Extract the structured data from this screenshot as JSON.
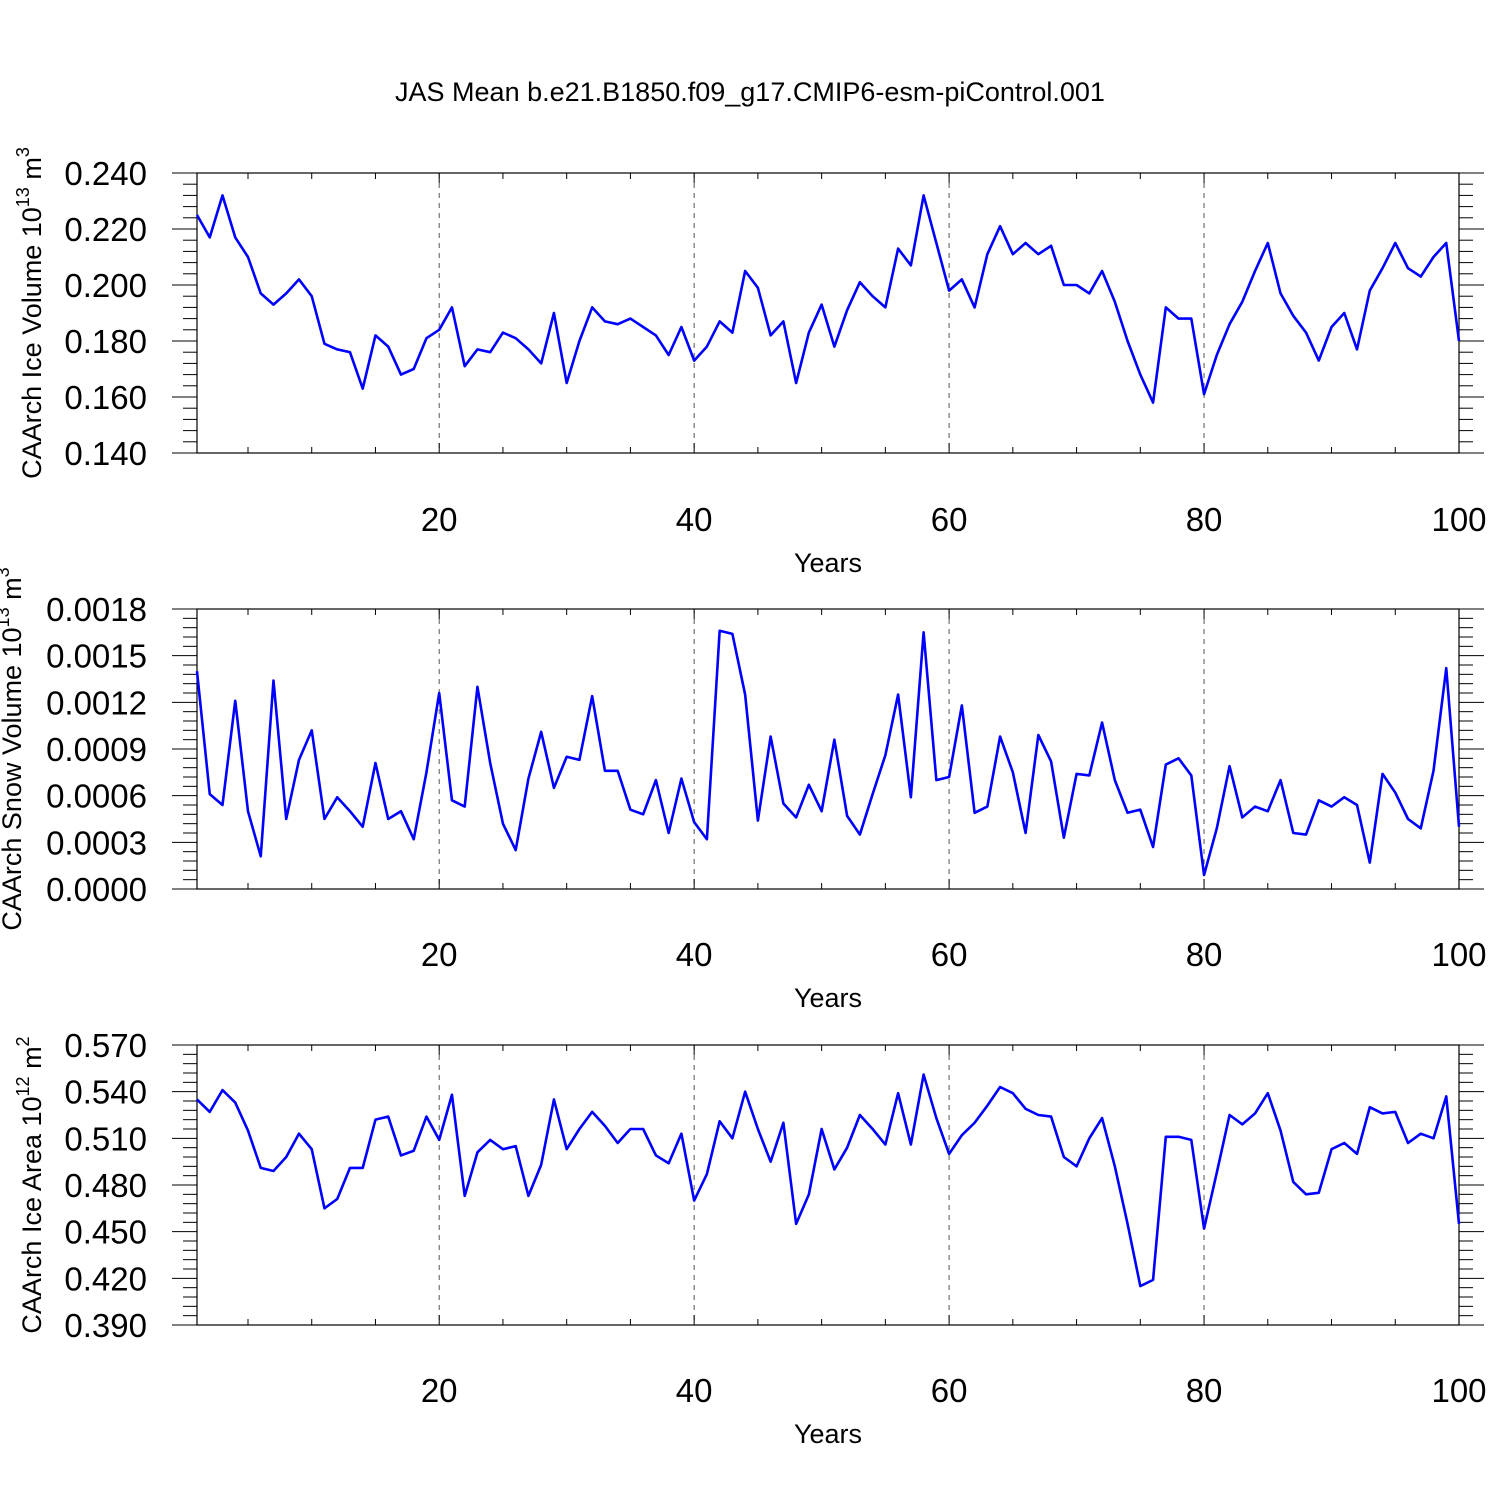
{
  "title": "JAS Mean b.e21.B1850.f09_g17.CMIP6-esm-piControl.001",
  "chart_data": [
    {
      "type": "line",
      "xlabel": "Years",
      "ylabel": "CAArch Ice Volume 10",
      "ylabel_exponent": "13",
      "ylabel_unit": " m",
      "ylabel_unit_exponent": "3",
      "xlim": [
        1,
        100
      ],
      "ylim": [
        0.14,
        0.24
      ],
      "xticks": [
        20,
        40,
        60,
        80,
        100
      ],
      "xtick_labels": [
        "20",
        "40",
        "60",
        "80",
        "100"
      ],
      "yticks": [
        0.14,
        0.16,
        0.18,
        0.2,
        0.22,
        0.24
      ],
      "ytick_labels": [
        "0.140",
        "0.160",
        "0.180",
        "0.200",
        "0.220",
        "0.240"
      ],
      "grid": "vertical dashed at x ticks",
      "series": [
        {
          "name": "CAArch Ice Volume",
          "color": "#0000ff",
          "values": [
            0.225,
            0.217,
            0.232,
            0.217,
            0.21,
            0.197,
            0.193,
            0.197,
            0.202,
            0.196,
            0.179,
            0.177,
            0.176,
            0.163,
            0.182,
            0.178,
            0.168,
            0.17,
            0.181,
            0.184,
            0.192,
            0.171,
            0.177,
            0.176,
            0.183,
            0.181,
            0.177,
            0.172,
            0.19,
            0.165,
            0.18,
            0.192,
            0.187,
            0.186,
            0.188,
            0.185,
            0.182,
            0.175,
            0.185,
            0.173,
            0.178,
            0.187,
            0.183,
            0.205,
            0.199,
            0.182,
            0.187,
            0.165,
            0.183,
            0.193,
            0.178,
            0.191,
            0.201,
            0.196,
            0.192,
            0.213,
            0.207,
            0.232,
            0.215,
            0.198,
            0.202,
            0.192,
            0.211,
            0.221,
            0.211,
            0.215,
            0.211,
            0.214,
            0.2,
            0.2,
            0.197,
            0.205,
            0.194,
            0.18,
            0.168,
            0.158,
            0.192,
            0.188,
            0.188,
            0.161,
            0.175,
            0.186,
            0.194,
            0.205,
            0.215,
            0.197,
            0.189,
            0.183,
            0.173,
            0.185,
            0.19,
            0.177,
            0.198,
            0.206,
            0.215,
            0.206,
            0.203,
            0.21,
            0.215,
            0.18
          ]
        }
      ]
    },
    {
      "type": "line",
      "xlabel": "Years",
      "ylabel": "CAArch Snow Volume 10",
      "ylabel_exponent": "13",
      "ylabel_unit": " m",
      "ylabel_unit_exponent": "3",
      "xlim": [
        1,
        100
      ],
      "ylim": [
        0.0,
        0.0018
      ],
      "xticks": [
        20,
        40,
        60,
        80,
        100
      ],
      "xtick_labels": [
        "20",
        "40",
        "60",
        "80",
        "100"
      ],
      "yticks": [
        0.0,
        0.0003,
        0.0006,
        0.0009,
        0.0012,
        0.0015,
        0.0018
      ],
      "ytick_labels": [
        "0.0000",
        "0.0003",
        "0.0006",
        "0.0009",
        "0.0012",
        "0.0015",
        "0.0018"
      ],
      "grid": "vertical dashed at x ticks",
      "series": [
        {
          "name": "CAArch Snow Volume",
          "color": "#0000ff",
          "values": [
            0.0014,
            0.00061,
            0.00054,
            0.00121,
            0.0005,
            0.00021,
            0.00134,
            0.00045,
            0.00083,
            0.00102,
            0.00045,
            0.00059,
            0.0005,
            0.0004,
            0.00081,
            0.00045,
            0.0005,
            0.00032,
            0.00075,
            0.00126,
            0.00057,
            0.00053,
            0.0013,
            0.00081,
            0.00042,
            0.00025,
            0.00071,
            0.00101,
            0.00065,
            0.00085,
            0.00083,
            0.00124,
            0.00076,
            0.00076,
            0.00051,
            0.00048,
            0.0007,
            0.00036,
            0.00071,
            0.00043,
            0.00032,
            0.00166,
            0.00164,
            0.00125,
            0.00044,
            0.00098,
            0.00055,
            0.00046,
            0.00067,
            0.0005,
            0.00096,
            0.00047,
            0.00035,
            0.00061,
            0.00086,
            0.00125,
            0.00059,
            0.00165,
            0.0007,
            0.00072,
            0.00118,
            0.00049,
            0.00053,
            0.00098,
            0.00075,
            0.00036,
            0.00099,
            0.00082,
            0.00033,
            0.00074,
            0.00073,
            0.00107,
            0.0007,
            0.00049,
            0.00051,
            0.00027,
            0.0008,
            0.00084,
            0.00073,
            9e-05,
            0.00039,
            0.00079,
            0.00046,
            0.00053,
            0.0005,
            0.0007,
            0.00036,
            0.00035,
            0.00057,
            0.00053,
            0.00059,
            0.00054,
            0.00017,
            0.00074,
            0.00062,
            0.00045,
            0.00039,
            0.00076,
            0.00142,
            0.0004
          ]
        }
      ]
    },
    {
      "type": "line",
      "xlabel": "Years",
      "ylabel": "CAArch Ice Area 10",
      "ylabel_exponent": "12",
      "ylabel_unit": " m",
      "ylabel_unit_exponent": "2",
      "xlim": [
        1,
        100
      ],
      "ylim": [
        0.39,
        0.57
      ],
      "xticks": [
        20,
        40,
        60,
        80,
        100
      ],
      "xtick_labels": [
        "20",
        "40",
        "60",
        "80",
        "100"
      ],
      "yticks": [
        0.39,
        0.42,
        0.45,
        0.48,
        0.51,
        0.54,
        0.57
      ],
      "ytick_labels": [
        "0.390",
        "0.420",
        "0.450",
        "0.480",
        "0.510",
        "0.540",
        "0.570"
      ],
      "grid": "vertical dashed at x ticks",
      "series": [
        {
          "name": "CAArch Ice Area",
          "color": "#0000ff",
          "values": [
            0.535,
            0.527,
            0.541,
            0.533,
            0.515,
            0.491,
            0.489,
            0.498,
            0.513,
            0.503,
            0.465,
            0.471,
            0.491,
            0.491,
            0.522,
            0.524,
            0.499,
            0.502,
            0.524,
            0.509,
            0.538,
            0.473,
            0.501,
            0.509,
            0.503,
            0.505,
            0.473,
            0.493,
            0.535,
            0.503,
            0.516,
            0.527,
            0.518,
            0.507,
            0.516,
            0.516,
            0.499,
            0.494,
            0.513,
            0.47,
            0.487,
            0.521,
            0.51,
            0.54,
            0.516,
            0.495,
            0.52,
            0.455,
            0.474,
            0.516,
            0.49,
            0.504,
            0.525,
            0.516,
            0.506,
            0.539,
            0.506,
            0.551,
            0.523,
            0.5,
            0.512,
            0.52,
            0.531,
            0.543,
            0.539,
            0.529,
            0.525,
            0.524,
            0.498,
            0.492,
            0.51,
            0.523,
            0.492,
            0.455,
            0.415,
            0.419,
            0.511,
            0.511,
            0.509,
            0.452,
            0.488,
            0.525,
            0.519,
            0.526,
            0.539,
            0.515,
            0.482,
            0.474,
            0.475,
            0.503,
            0.507,
            0.5,
            0.53,
            0.526,
            0.527,
            0.507,
            0.513,
            0.51,
            0.537,
            0.455
          ]
        }
      ]
    }
  ]
}
